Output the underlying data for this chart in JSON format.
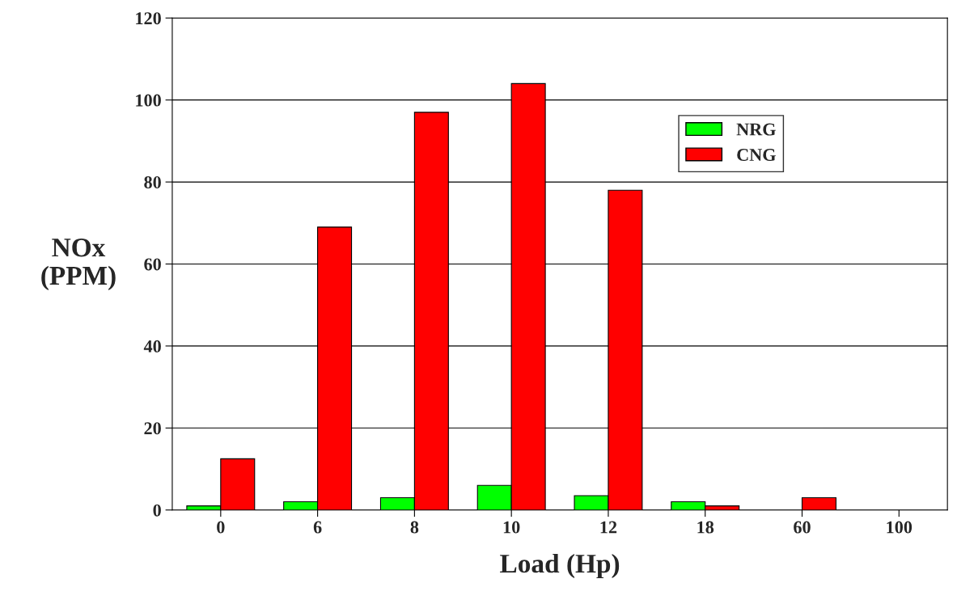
{
  "chart_data": {
    "type": "bar",
    "xlabel": "Load (Hp)",
    "ylabel": "NOx\n(PPM)",
    "categories": [
      "0",
      "6",
      "8",
      "10",
      "12",
      "18",
      "60",
      "100"
    ],
    "series": [
      {
        "name": "NRG",
        "color": "#00ff00",
        "values": [
          1,
          2,
          3,
          6,
          3.5,
          2,
          0,
          0
        ]
      },
      {
        "name": "CNG",
        "color": "#ff0000",
        "values": [
          12.5,
          69,
          97,
          104,
          78,
          1,
          3,
          0
        ]
      }
    ],
    "ylim": [
      0,
      120
    ],
    "yticks": [
      0,
      20,
      40,
      60,
      80,
      100,
      120
    ],
    "grid": "y",
    "legend": "top right"
  }
}
